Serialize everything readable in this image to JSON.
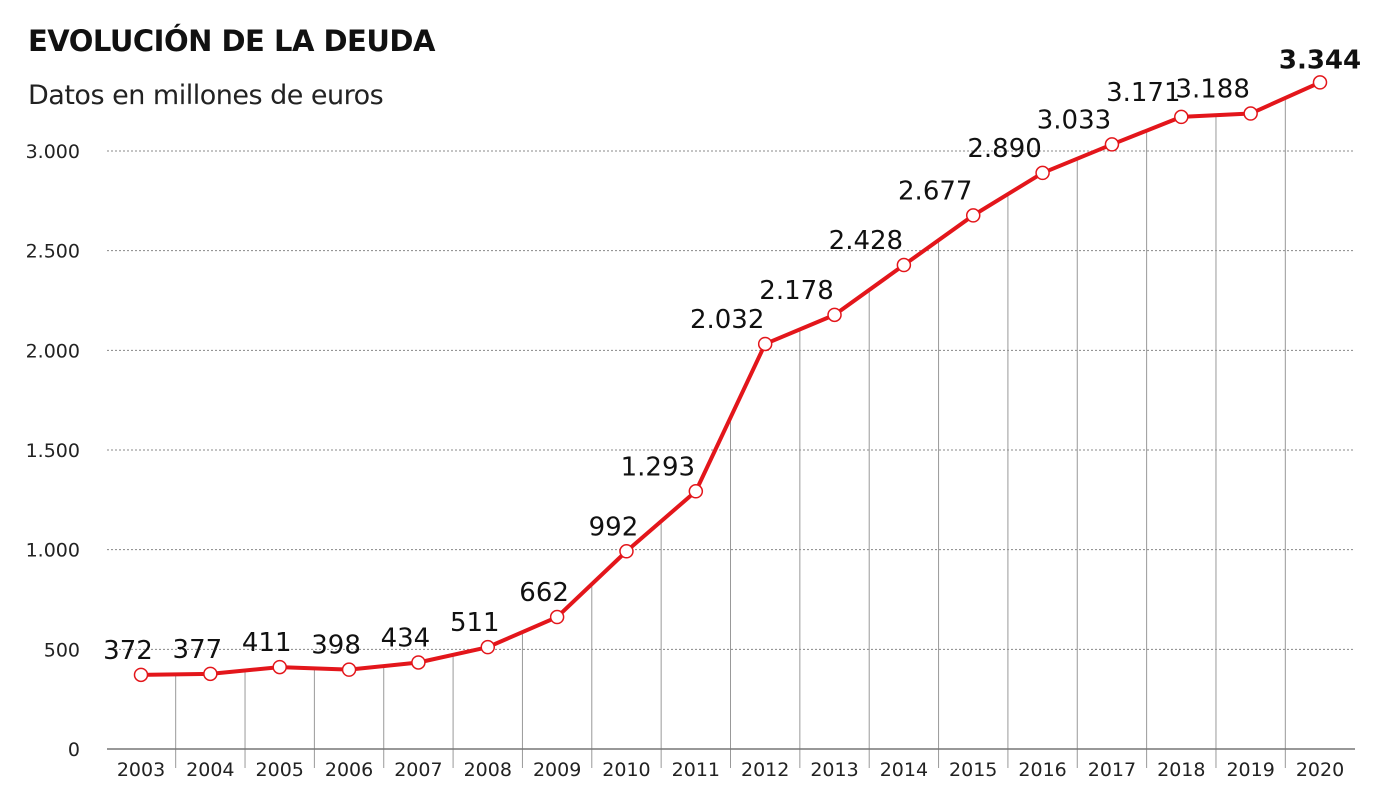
{
  "chart_data": {
    "type": "line",
    "title": "EVOLUCIÓN DE LA DEUDA",
    "subtitle": "Datos en millones de euros",
    "xlabel": "",
    "ylabel": "",
    "categories": [
      "2003",
      "2004",
      "2005",
      "2006",
      "2007",
      "2008",
      "2009",
      "2010",
      "2011",
      "2012",
      "2013",
      "2014",
      "2015",
      "2016",
      "2017",
      "2018",
      "2019",
      "2020"
    ],
    "values": [
      372,
      377,
      411,
      398,
      434,
      511,
      662,
      992,
      1293,
      2032,
      2178,
      2428,
      2677,
      2890,
      3033,
      3171,
      3188,
      3344
    ],
    "data_labels": [
      "372",
      "377",
      "411",
      "398",
      "434",
      "511",
      "662",
      "992",
      "1.293",
      "2.032",
      "2.178",
      "2.428",
      "2.677",
      "2.890",
      "3.033",
      "3.171",
      "3.188",
      "3.344"
    ],
    "ylim": [
      0,
      3000
    ],
    "yticks": [
      0,
      500,
      1000,
      1500,
      2000,
      2500,
      3000
    ],
    "ytick_labels": [
      "0",
      "500",
      "1.000",
      "1.500",
      "2.000",
      "2.500",
      "3.000"
    ],
    "grid": true,
    "line_color": "#e3161b"
  }
}
